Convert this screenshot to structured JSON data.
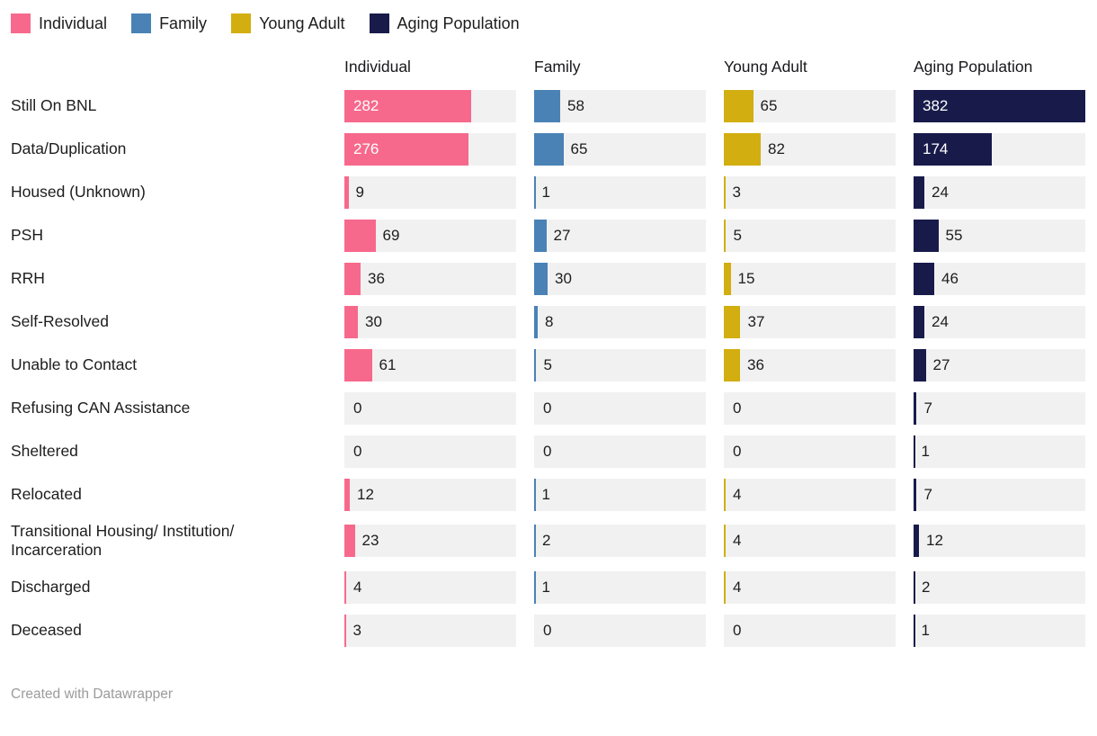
{
  "legend": {
    "items": [
      {
        "label": "Individual",
        "color": "#F7698C"
      },
      {
        "label": "Family",
        "color": "#4A82B6"
      },
      {
        "label": "Young Adult",
        "color": "#D2AE10"
      },
      {
        "label": "Aging Population",
        "color": "#181B4A"
      }
    ]
  },
  "chart_data": {
    "type": "bar",
    "variant": "split-bars-grouped-columns",
    "categories": [
      "Still On BNL",
      "Data/Duplication",
      "Housed (Unknown)",
      "PSH",
      "RRH",
      "Self-Resolved",
      "Unable to Contact",
      "Refusing CAN Assistance",
      "Sheltered",
      "Relocated",
      "Transitional Housing/ Institution/ Incarceration",
      "Discharged",
      "Deceased"
    ],
    "series": [
      {
        "name": "Individual",
        "color": "#F7698C",
        "values": [
          282,
          276,
          9,
          69,
          36,
          30,
          61,
          0,
          0,
          12,
          23,
          4,
          3
        ]
      },
      {
        "name": "Family",
        "color": "#4A82B6",
        "values": [
          58,
          65,
          1,
          27,
          30,
          8,
          5,
          0,
          0,
          1,
          2,
          1,
          0
        ]
      },
      {
        "name": "Young Adult",
        "color": "#D2AE10",
        "values": [
          65,
          82,
          3,
          5,
          15,
          37,
          36,
          0,
          0,
          4,
          4,
          4,
          0
        ]
      },
      {
        "name": "Aging Population",
        "color": "#181B4A",
        "values": [
          382,
          174,
          24,
          55,
          46,
          24,
          27,
          7,
          1,
          7,
          12,
          2,
          1
        ]
      }
    ],
    "xlim": [
      0,
      382
    ],
    "value_labels": true,
    "legend_position": "top",
    "grid": false
  },
  "colors": {
    "track": "#F1F1F1",
    "text": "#1D1D1D",
    "header_text": "#18181B",
    "inside_label": "#FFFFFF",
    "footer_text": "#9B9B9B",
    "background": "#FFFFFF"
  },
  "footer": {
    "credit": "Created with Datawrapper"
  }
}
